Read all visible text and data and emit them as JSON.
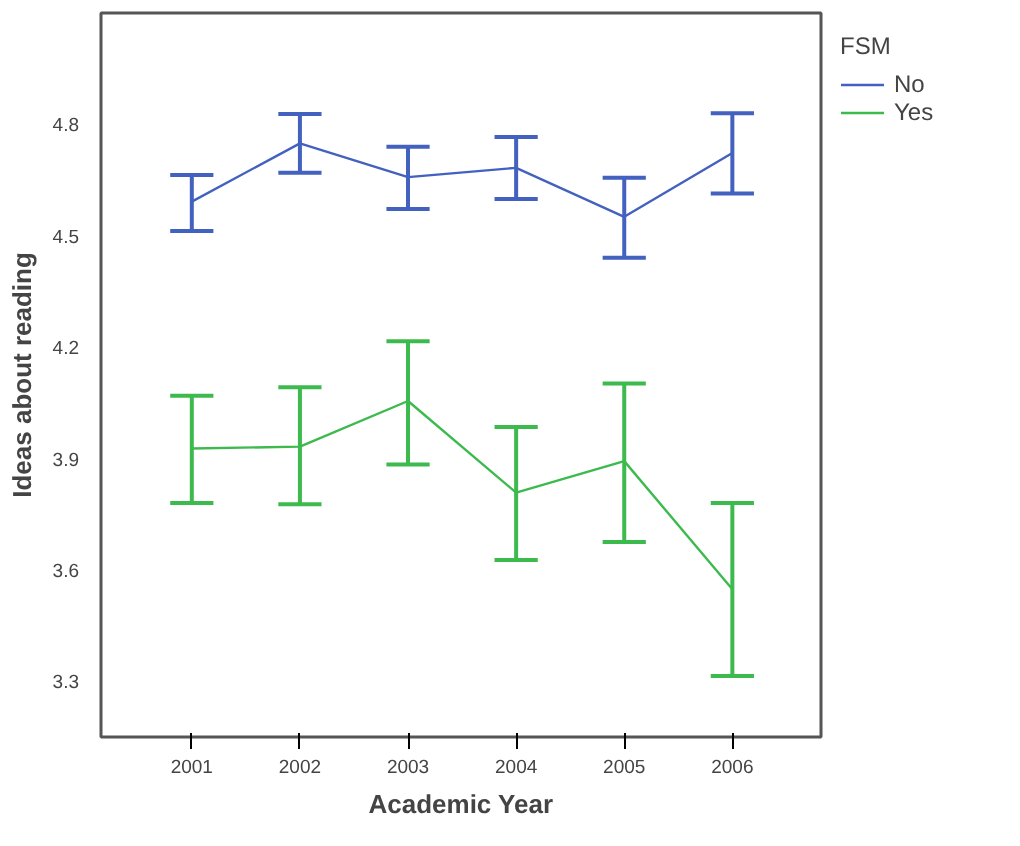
{
  "chart_data": {
    "type": "line",
    "xlabel": "Academic Year",
    "ylabel": "Ideas about reading",
    "legend_title": "FSM",
    "legend": "top right",
    "grid": false,
    "marker": "none",
    "xlim": [
      2000.16,
      2006.82
    ],
    "xticks": [
      2001,
      2002,
      2003,
      2004,
      2005,
      2006
    ],
    "ylim": [
      3.15,
      5.1
    ],
    "yticks": [
      3.3,
      3.6,
      3.9,
      4.2,
      4.5,
      4.8
    ],
    "series": [
      {
        "name": "No",
        "color": "#4361be",
        "x": [
          2001,
          2002,
          2003,
          2004,
          2005,
          2006
        ],
        "values": [
          4.592,
          4.749,
          4.658,
          4.683,
          4.551,
          4.723
        ],
        "errors": [
          [
            4.513,
            4.664
          ],
          [
            4.67,
            4.828
          ],
          [
            4.572,
            4.74
          ],
          [
            4.599,
            4.766
          ],
          [
            4.441,
            4.656
          ],
          [
            4.614,
            4.83
          ]
        ]
      },
      {
        "name": "Yes",
        "color": "#3dba4e",
        "x": [
          2001,
          2002,
          2003,
          2004,
          2005,
          2006
        ],
        "values": [
          3.927,
          3.932,
          4.055,
          3.808,
          3.893,
          3.548
        ],
        "errors": [
          [
            3.78,
            4.069
          ],
          [
            3.777,
            4.092
          ],
          [
            3.884,
            4.216
          ],
          [
            3.627,
            3.985
          ],
          [
            3.675,
            4.102
          ],
          [
            3.314,
            3.78
          ]
        ]
      }
    ]
  }
}
